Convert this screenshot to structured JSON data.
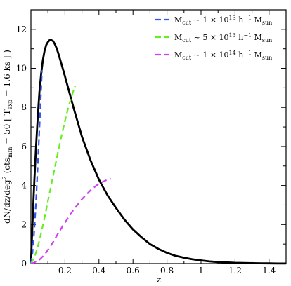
{
  "chart_data": {
    "type": "line",
    "xlabel": "z",
    "ylabel": {
      "prefix": "dN/dz/deg",
      "sup": "2",
      "mid1": " (cts",
      "sub": "min",
      "mid2": " = 50 [ T",
      "sub2": "exp",
      "suffix": " = 1.6 ks ] )"
    },
    "xlim": [
      0,
      1.5
    ],
    "ylim": [
      0,
      13
    ],
    "x_ticks": [
      0.2,
      0.4,
      0.6,
      0.8,
      1,
      1.2,
      1.4
    ],
    "y_ticks": [
      0,
      2,
      4,
      6,
      8,
      10,
      12
    ],
    "x_tick_labels": [
      "0.2",
      "0.4",
      "0.6",
      "0.8",
      "1",
      "1.2",
      "1.4"
    ],
    "y_tick_labels": [
      "0",
      "2",
      "4",
      "6",
      "8",
      "10",
      "12"
    ],
    "grid": false,
    "legend_position": "top-right",
    "series": [
      {
        "color": "#000000",
        "style": "solid",
        "x": [
          0,
          0.01,
          0.02,
          0.03,
          0.04,
          0.05,
          0.06,
          0.07,
          0.08,
          0.09,
          0.1,
          0.11,
          0.12,
          0.13,
          0.14,
          0.15,
          0.16,
          0.18,
          0.2,
          0.25,
          0.3,
          0.35,
          0.4,
          0.45,
          0.5,
          0.55,
          0.6,
          0.65,
          0.7,
          0.75,
          0.8,
          0.85,
          0.9,
          0.95,
          1.0,
          1.05,
          1.1,
          1.15,
          1.2,
          1.25,
          1.3,
          1.35,
          1.4,
          1.45,
          1.5
        ],
        "y": [
          0,
          2.2,
          4.2,
          6.0,
          7.5,
          8.8,
          9.7,
          10.4,
          10.9,
          11.2,
          11.35,
          11.45,
          11.45,
          11.4,
          11.25,
          11.05,
          10.8,
          10.2,
          9.6,
          8.0,
          6.5,
          5.3,
          4.3,
          3.5,
          2.85,
          2.25,
          1.75,
          1.35,
          1.0,
          0.75,
          0.55,
          0.4,
          0.3,
          0.22,
          0.16,
          0.11,
          0.08,
          0.06,
          0.04,
          0.03,
          0.02,
          0.015,
          0.01,
          0.005,
          0.003
        ]
      },
      {
        "color": "#3355ee",
        "style": "dashed",
        "legend": {
          "pre": "M",
          "sub": "cut",
          "mid": " ~ 1 × 10",
          "sup": "13",
          "mid2": " h",
          "sup2": "−1",
          "mid3": " M",
          "sub2": "sun"
        },
        "x": [
          0,
          0.01,
          0.02,
          0.03,
          0.04,
          0.05,
          0.06,
          0.065
        ],
        "y": [
          0,
          0.6,
          1.7,
          3.2,
          5.0,
          6.9,
          8.9,
          9.9
        ]
      },
      {
        "color": "#66ee22",
        "style": "dashed",
        "legend": {
          "pre": "M",
          "sub": "cut",
          "mid": " ~ 5 × 10",
          "sup": "13",
          "mid2": " h",
          "sup2": "−1",
          "mid3": " M",
          "sub2": "sun"
        },
        "x": [
          0,
          0.02,
          0.04,
          0.06,
          0.08,
          0.1,
          0.12,
          0.14,
          0.16,
          0.18,
          0.2,
          0.22,
          0.24,
          0.26
        ],
        "y": [
          0,
          0.3,
          0.85,
          1.55,
          2.35,
          3.2,
          4.05,
          4.9,
          5.75,
          6.55,
          7.3,
          8.0,
          8.6,
          9.1
        ]
      },
      {
        "color": "#cc44ee",
        "style": "dashed",
        "legend": {
          "pre": "M",
          "sub": "cut",
          "mid": " ~ 1 × 10",
          "sup": "14",
          "mid2": " h",
          "sup2": "−1",
          "mid3": " M",
          "sub2": "sun"
        },
        "x": [
          0,
          0.02,
          0.05,
          0.08,
          0.1,
          0.13,
          0.16,
          0.2,
          0.25,
          0.3,
          0.35,
          0.4,
          0.45,
          0.47
        ],
        "y": [
          0,
          0.05,
          0.2,
          0.45,
          0.7,
          1.1,
          1.55,
          2.1,
          2.75,
          3.3,
          3.75,
          4.1,
          4.3,
          4.35
        ]
      }
    ]
  }
}
